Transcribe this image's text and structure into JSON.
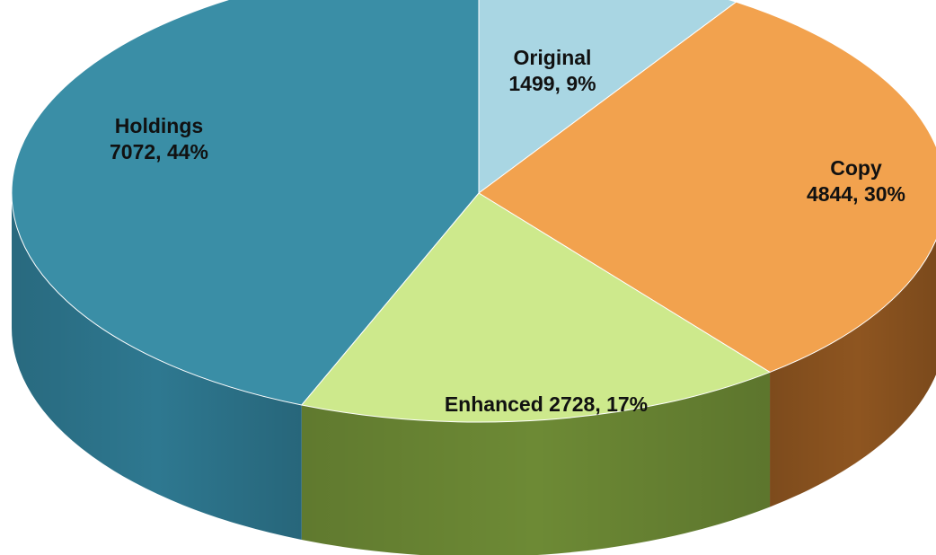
{
  "chart_data": {
    "type": "pie",
    "style": "3d",
    "title": "",
    "slices": [
      {
        "name": "Original",
        "value": 1499,
        "percent": "9%",
        "label_lines": [
          "Original",
          "1499, 9%"
        ],
        "color": "#a9d6e3",
        "side_color": "#86b4c2"
      },
      {
        "name": "Copy",
        "value": 4844,
        "percent": "30%",
        "label_lines": [
          "Copy",
          "4844, 30%"
        ],
        "color": "#f2a24e",
        "side_color": "#8e5520"
      },
      {
        "name": "Enhanced",
        "value": 2728,
        "percent": "17%",
        "label_lines": [
          "Enhanced 2728, 17%"
        ],
        "color": "#cde98c",
        "side_color": "#6d8a35"
      },
      {
        "name": "Holdings",
        "value": 7072,
        "percent": "44%",
        "label_lines": [
          "Holdings",
          "7072, 44%"
        ],
        "color": "#3a8ea6",
        "side_color": "#2e7890"
      }
    ]
  }
}
